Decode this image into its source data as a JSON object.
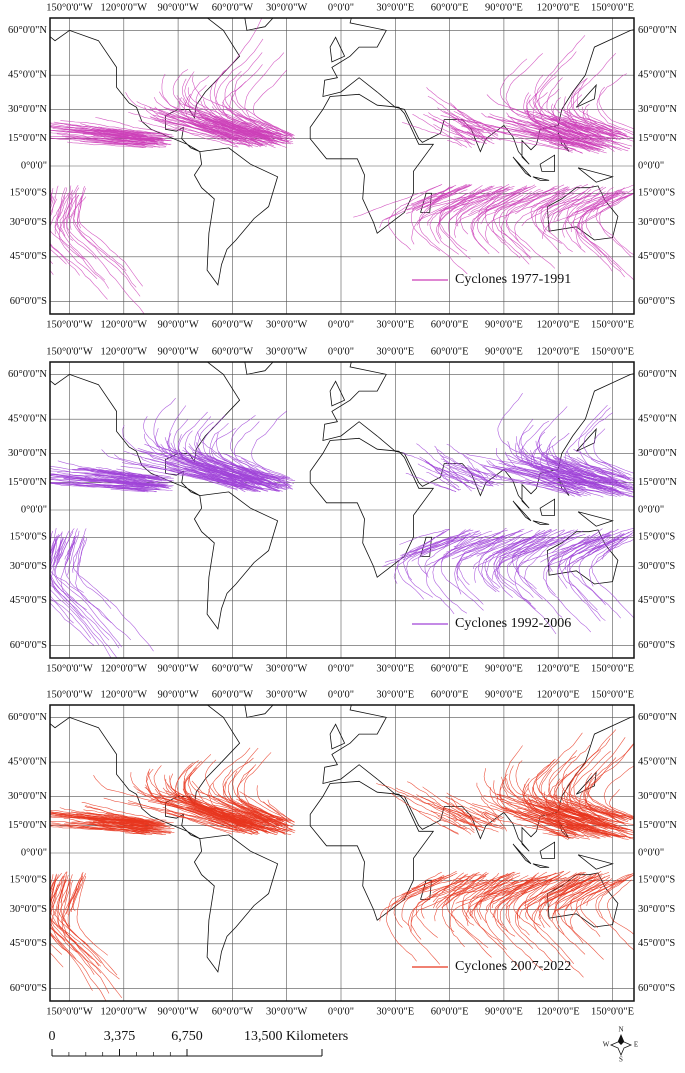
{
  "maps": [
    {
      "legend": "Cyclones 1977-1991",
      "color": "#cc3fb8"
    },
    {
      "legend": "Cyclones 1992-2006",
      "color": "#a044d8"
    },
    {
      "legend": "Cyclones 2007-2022",
      "color": "#e8361e"
    }
  ],
  "longitude_ticks": [
    {
      "value": -150,
      "label": "150°0'0\"W"
    },
    {
      "value": -120,
      "label": "120°0'0\"W"
    },
    {
      "value": -90,
      "label": "90°0'0\"W"
    },
    {
      "value": -60,
      "label": "60°0'0\"W"
    },
    {
      "value": -30,
      "label": "30°0'0\"W"
    },
    {
      "value": 0,
      "label": "0°0'0\""
    },
    {
      "value": 30,
      "label": "30°0'0\"E"
    },
    {
      "value": 60,
      "label": "60°0'0\"E"
    },
    {
      "value": 90,
      "label": "90°0'0\"E"
    },
    {
      "value": 120,
      "label": "120°0'0\"E"
    },
    {
      "value": 150,
      "label": "150°0'0\"E"
    }
  ],
  "latitude_ticks": [
    {
      "value": 60,
      "label": "60°0'0\"N"
    },
    {
      "value": 45,
      "label": "45°0'0\"N"
    },
    {
      "value": 30,
      "label": "30°0'0\"N"
    },
    {
      "value": 15,
      "label": "15°0'0\"N"
    },
    {
      "value": 0,
      "label": "0°0'0\""
    },
    {
      "value": -15,
      "label": "15°0'0\"S"
    },
    {
      "value": -30,
      "label": "30°0'0\"S"
    },
    {
      "value": -45,
      "label": "45°0'0\"S"
    },
    {
      "value": -60,
      "label": "60°0'0\"S"
    }
  ],
  "scale_bar": {
    "ticks": [
      {
        "value": 0,
        "label": "0"
      },
      {
        "value": 3375,
        "label": "3,375"
      },
      {
        "value": 6750,
        "label": "6,750"
      },
      {
        "value": 13500,
        "label": "13,500 Kilometers"
      }
    ]
  },
  "compass": {
    "north": "N",
    "east": "E",
    "south": "S",
    "west": "W"
  }
}
